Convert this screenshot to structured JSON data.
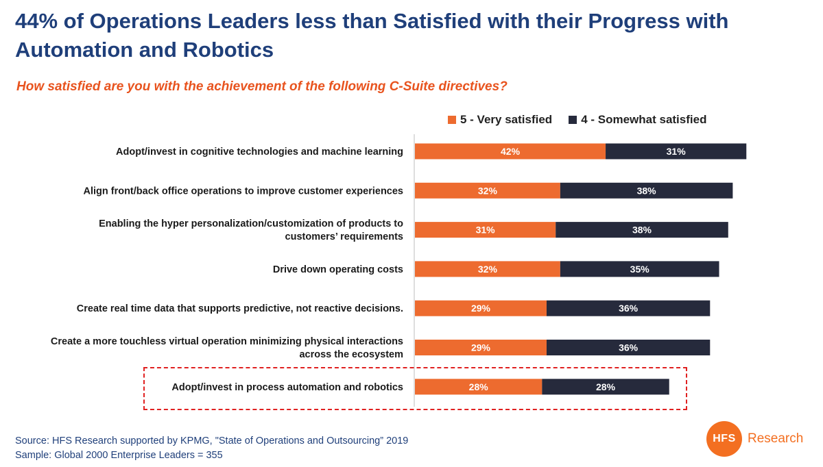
{
  "title": "44% of Operations Leaders less than Satisfied with their Progress with Automation and Robotics",
  "subtitle": "How satisfied are you with the achievement of the following C-Suite directives?",
  "legend": [
    {
      "label": "5 - Very satisfied",
      "color": "#ed6b2f"
    },
    {
      "label": "4 - Somewhat satisfied",
      "color": "#262a3c"
    }
  ],
  "footer": {
    "source": "Source: HFS Research supported by KPMG, \"State of Operations and Outsourcing” 2019",
    "sample": "Sample: Global 2000 Enterprise Leaders = 355"
  },
  "logo": {
    "mark": "HFS",
    "word": "Research"
  },
  "chart_data": {
    "type": "bar",
    "orientation": "horizontal",
    "stacked": true,
    "categories": [
      [
        "Adopt/invest in cognitive technologies and machine learning"
      ],
      [
        "Align front/back office operations to improve customer experiences"
      ],
      [
        "Enabling the hyper personalization/customization of products to",
        "customers’ requirements"
      ],
      [
        "Drive down operating costs"
      ],
      [
        "Create real time data that supports predictive, not reactive decisions."
      ],
      [
        "Create a more touchless virtual operation minimizing physical interactions",
        "across the ecosystem"
      ],
      [
        "Adopt/invest in process automation and robotics"
      ]
    ],
    "series": [
      {
        "name": "5 - Very satisfied",
        "values": [
          42,
          32,
          31,
          32,
          29,
          29,
          28
        ],
        "labels": [
          "42%",
          "32%",
          "31%",
          "32%",
          "29%",
          "29%",
          "28%"
        ],
        "color": "#ed6b2f"
      },
      {
        "name": "4 - Somewhat satisfied",
        "values": [
          31,
          38,
          38,
          35,
          36,
          36,
          28
        ],
        "labels": [
          "31%",
          "38%",
          "38%",
          "35%",
          "36%",
          "36%",
          "28%"
        ],
        "color": "#262a3c"
      }
    ],
    "xlim": [
      0,
      75
    ],
    "highlighted_category": "Adopt/invest in process automation and robotics"
  }
}
